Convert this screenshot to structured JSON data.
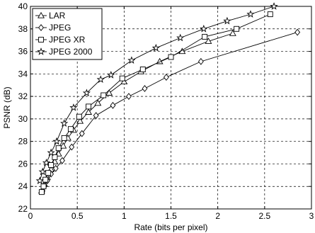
{
  "chart_data": {
    "type": "line",
    "xlabel": "Rate (bits per pixel)",
    "ylabel": "PSNR (dB)",
    "xlim": [
      0,
      3
    ],
    "ylim": [
      22,
      40
    ],
    "xticks": [
      0,
      0.5,
      1,
      1.5,
      2,
      2.5,
      3
    ],
    "xtick_labels": [
      "0",
      "0.5",
      "1",
      "1.5",
      "2",
      "2.5",
      "3"
    ],
    "yticks": [
      22,
      24,
      26,
      28,
      30,
      32,
      34,
      36,
      38,
      40
    ],
    "ytick_labels": [
      "22",
      "24",
      "26",
      "28",
      "30",
      "32",
      "34",
      "36",
      "38",
      "40"
    ],
    "grid": true,
    "legend_position": "top-left",
    "series": [
      {
        "name": "LAR",
        "marker": "triangle",
        "x": [
          0.12,
          0.15,
          0.18,
          0.22,
          0.26,
          0.3,
          0.35,
          0.4,
          0.46,
          0.53,
          0.62,
          0.72,
          0.84,
          1.0,
          1.18,
          1.38,
          1.62,
          1.9,
          2.16
        ],
        "y": [
          23.6,
          24.2,
          24.8,
          25.5,
          26.2,
          26.9,
          27.6,
          28.3,
          29.0,
          29.8,
          30.6,
          31.4,
          32.3,
          33.3,
          34.2,
          35.1,
          36.0,
          36.9,
          37.6
        ]
      },
      {
        "name": "JPEG",
        "marker": "diamond",
        "x": [
          0.13,
          0.15,
          0.18,
          0.22,
          0.27,
          0.34,
          0.44,
          0.55,
          0.7,
          0.88,
          1.05,
          1.22,
          1.45,
          1.82,
          2.85
        ],
        "y": [
          23.6,
          24.0,
          24.5,
          25.1,
          25.6,
          26.3,
          27.5,
          28.7,
          30.3,
          31.2,
          32.0,
          32.7,
          33.7,
          35.1,
          37.7
        ]
      },
      {
        "name": "JPEG XR",
        "marker": "square",
        "x": [
          0.12,
          0.14,
          0.16,
          0.19,
          0.22,
          0.26,
          0.3,
          0.36,
          0.43,
          0.52,
          0.62,
          0.78,
          0.98,
          1.2,
          1.5,
          1.86,
          2.2,
          2.56
        ],
        "y": [
          23.5,
          24.0,
          24.6,
          25.2,
          25.9,
          26.6,
          27.4,
          28.3,
          29.1,
          30.2,
          31.1,
          32.1,
          33.6,
          34.4,
          35.5,
          37.3,
          38.0,
          39.3
        ]
      },
      {
        "name": "JPEG 2000",
        "marker": "star",
        "x": [
          0.1,
          0.13,
          0.17,
          0.22,
          0.28,
          0.36,
          0.46,
          0.6,
          0.75,
          0.86,
          1.08,
          1.34,
          1.6,
          1.85,
          2.1,
          2.35,
          2.6
        ],
        "y": [
          24.5,
          25.3,
          26.1,
          27.0,
          28.0,
          29.6,
          31.0,
          32.3,
          33.5,
          33.9,
          35.2,
          36.3,
          37.2,
          38.0,
          38.7,
          39.3,
          40.0
        ]
      }
    ]
  }
}
